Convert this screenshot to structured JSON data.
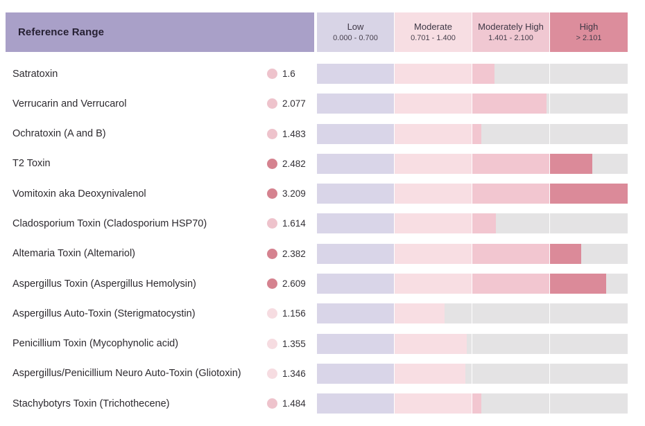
{
  "header": {
    "title": "Reference Range",
    "columns": [
      {
        "label": "Low",
        "range": "0.000 - 0.700",
        "color": "#d8d4e6"
      },
      {
        "label": "Moderate",
        "range": "0.701 - 1.400",
        "color": "#f7dee3"
      },
      {
        "label": "Moderately High",
        "range": "1.401 - 2.100",
        "color": "#f0c8d2"
      },
      {
        "label": "High",
        "range": "> 2.101",
        "color": "#dc8d9c"
      }
    ]
  },
  "colors": {
    "header_band": "#a9a0c8",
    "header_title_text": "#262033",
    "bar_empty": "#e4e3e4",
    "segment_fills": {
      "low": "#d9d5e8",
      "moderate": "#f8dee3",
      "moderately_high": "#f2c6d0",
      "high": "#db8a99"
    },
    "dot_fills": {
      "moderate": "#f6dce1",
      "moderately_high": "#eec3cc",
      "high": "#d5828f"
    }
  },
  "scale": {
    "segment_size": 0.7,
    "segments": [
      0,
      0.7,
      1.4,
      2.1
    ],
    "max": 2.8
  },
  "rows": [
    {
      "label": "Satratoxin",
      "value": "1.6",
      "numeric": 1.6,
      "tier": "moderately_high"
    },
    {
      "label": "Verrucarin and Verrucarol",
      "value": "2.077",
      "numeric": 2.077,
      "tier": "moderately_high"
    },
    {
      "label": "Ochratoxin (A and B)",
      "value": "1.483",
      "numeric": 1.483,
      "tier": "moderately_high"
    },
    {
      "label": "T2 Toxin",
      "value": "2.482",
      "numeric": 2.482,
      "tier": "high"
    },
    {
      "label": "Vomitoxin aka Deoxynivalenol",
      "value": "3.209",
      "numeric": 3.209,
      "tier": "high"
    },
    {
      "label": "Cladosporium Toxin (Cladosporium HSP70)",
      "value": "1.614",
      "numeric": 1.614,
      "tier": "moderately_high"
    },
    {
      "label": "Altemaria Toxin (Altemariol)",
      "value": "2.382",
      "numeric": 2.382,
      "tier": "high"
    },
    {
      "label": "Aspergillus Toxin (Aspergillus Hemolysin)",
      "value": "2.609",
      "numeric": 2.609,
      "tier": "high"
    },
    {
      "label": "Aspergillus Auto-Toxin (Sterigmatocystin)",
      "value": "1.156",
      "numeric": 1.156,
      "tier": "moderate"
    },
    {
      "label": "Penicillium Toxin (Mycophynolic acid)",
      "value": "1.355",
      "numeric": 1.355,
      "tier": "moderate"
    },
    {
      "label": "Aspergillus/Penicillium Neuro Auto-Toxin (Gliotoxin)",
      "value": "1.346",
      "numeric": 1.346,
      "tier": "moderate"
    },
    {
      "label": "Stachybotyrs Toxin (Trichothecene)",
      "value": "1.484",
      "numeric": 1.484,
      "tier": "moderately_high"
    }
  ],
  "chart_data": {
    "type": "bar",
    "orientation": "horizontal",
    "title": "Reference Range",
    "categories": [
      "Satratoxin",
      "Verrucarin and Verrucarol",
      "Ochratoxin (A and B)",
      "T2 Toxin",
      "Vomitoxin aka Deoxynivalenol",
      "Cladosporium Toxin (Cladosporium HSP70)",
      "Altemaria Toxin (Altemariol)",
      "Aspergillus Toxin (Aspergillus Hemolysin)",
      "Aspergillus Auto-Toxin (Sterigmatocystin)",
      "Penicillium Toxin (Mycophynolic acid)",
      "Aspergillus/Penicillium Neuro Auto-Toxin (Gliotoxin)",
      "Stachybotyrs Toxin (Trichothecene)"
    ],
    "values": [
      1.6,
      2.077,
      1.483,
      2.482,
      3.209,
      1.614,
      2.382,
      2.609,
      1.156,
      1.355,
      1.346,
      1.484
    ],
    "xlabel": "",
    "ylabel": "",
    "xlim": [
      0,
      2.8
    ],
    "legend_position": "top",
    "grid": false,
    "bands": [
      {
        "label": "Low",
        "display": "0.000 - 0.700",
        "min": 0.0,
        "max": 0.7
      },
      {
        "label": "Moderate",
        "display": "0.701 - 1.400",
        "min": 0.701,
        "max": 1.4
      },
      {
        "label": "Moderately High",
        "display": "1.401 - 2.100",
        "min": 1.401,
        "max": 2.1
      },
      {
        "label": "High",
        "display": "> 2.101",
        "min": 2.101,
        "max": null
      }
    ]
  }
}
